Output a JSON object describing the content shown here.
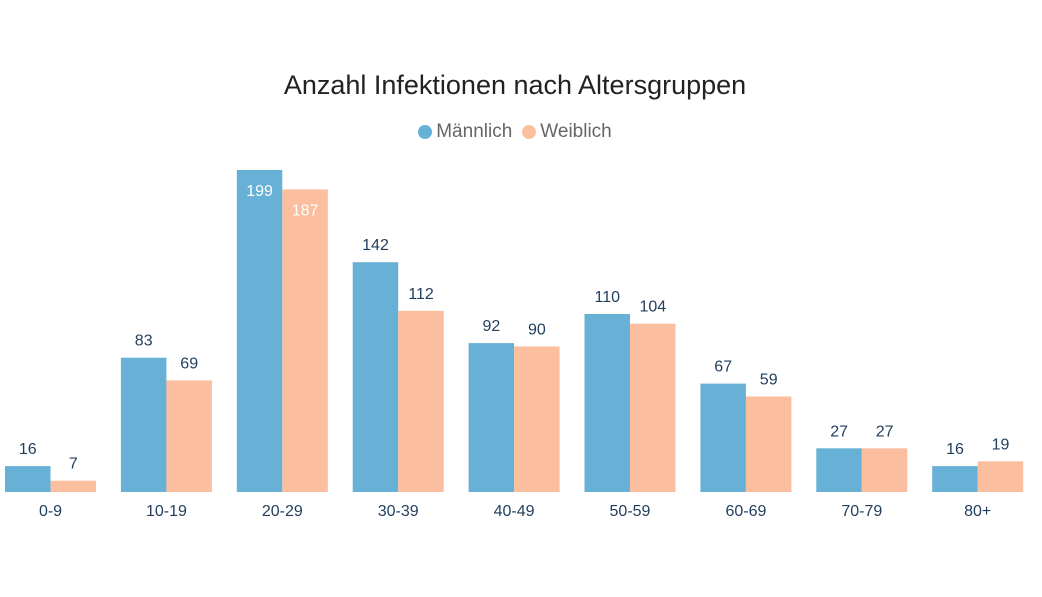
{
  "chart_data": {
    "type": "bar",
    "title": "Anzahl Infektionen nach Altersgruppen",
    "categories": [
      "0-9",
      "10-19",
      "20-29",
      "30-39",
      "40-49",
      "50-59",
      "60-69",
      "70-79",
      "80+"
    ],
    "series": [
      {
        "name": "Männlich",
        "values": [
          16,
          83,
          199,
          142,
          92,
          110,
          67,
          27,
          16
        ],
        "color": "#67b0d6"
      },
      {
        "name": "Weiblich",
        "values": [
          7,
          69,
          187,
          112,
          90,
          104,
          59,
          27,
          19
        ],
        "color": "#fbbfa0"
      }
    ],
    "ylim": [
      0,
      200
    ],
    "grid": false,
    "legend_position": "top-center",
    "label_color": "#1f3d5c",
    "inside_label_color": "#ffffff"
  }
}
